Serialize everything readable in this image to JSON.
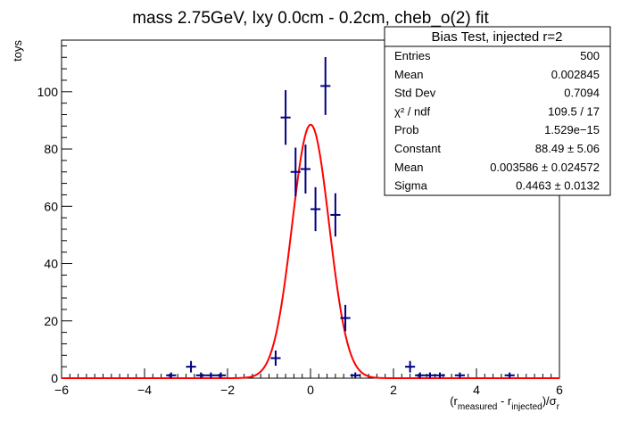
{
  "chart_data": {
    "type": "scatter",
    "title": "mass 2.75GeV, lxy 0.0cm - 0.2cm, cheb_o(2) fit",
    "ylabel": "toys",
    "xlabel_parts": {
      "open": "(r",
      "sub1": "measured",
      "mid": " - r",
      "sub2": "injected",
      "close": ")/σ",
      "sub3": "r"
    },
    "xlim": [
      -6,
      6
    ],
    "ylim": [
      0,
      118
    ],
    "xticks": [
      -6,
      -4,
      -2,
      0,
      2,
      4,
      6
    ],
    "yticks": [
      0,
      20,
      40,
      60,
      80,
      100
    ],
    "bin_width": 0.24,
    "series": [
      {
        "type": "histogram-points",
        "color": "#000080",
        "points": [
          {
            "x": -3.36,
            "y": 1,
            "err": 1.0
          },
          {
            "x": -2.88,
            "y": 4,
            "err": 2.0
          },
          {
            "x": -2.64,
            "y": 1,
            "err": 1.0
          },
          {
            "x": -2.4,
            "y": 1,
            "err": 1.0
          },
          {
            "x": -2.16,
            "y": 1,
            "err": 1.0
          },
          {
            "x": -0.84,
            "y": 7,
            "err": 2.65
          },
          {
            "x": -0.6,
            "y": 91,
            "err": 9.54
          },
          {
            "x": -0.36,
            "y": 72,
            "err": 8.49
          },
          {
            "x": -0.12,
            "y": 73,
            "err": 8.54
          },
          {
            "x": 0.12,
            "y": 59,
            "err": 7.68
          },
          {
            "x": 0.36,
            "y": 102,
            "err": 10.1
          },
          {
            "x": 0.6,
            "y": 57,
            "err": 7.55
          },
          {
            "x": 0.84,
            "y": 21,
            "err": 4.58
          },
          {
            "x": 1.08,
            "y": 1,
            "err": 1.0
          },
          {
            "x": 2.4,
            "y": 4,
            "err": 2.0
          },
          {
            "x": 2.64,
            "y": 1,
            "err": 1.0
          },
          {
            "x": 2.88,
            "y": 1,
            "err": 1.0
          },
          {
            "x": 3.12,
            "y": 1,
            "err": 1.0
          },
          {
            "x": 3.6,
            "y": 1,
            "err": 1.0
          },
          {
            "x": 4.8,
            "y": 1,
            "err": 1.0
          }
        ]
      },
      {
        "type": "gaussian-fit",
        "color": "#ff0000",
        "constant": 88.49,
        "mean": 0.003586,
        "sigma": 0.4463,
        "range": [
          -6,
          6
        ]
      }
    ],
    "stats_box": {
      "title": "Bias Test, injected r=2",
      "rows": [
        {
          "label": "Entries",
          "value": "500"
        },
        {
          "label": "Mean",
          "value": "0.002845"
        },
        {
          "label": "Std Dev",
          "value": "0.7094"
        },
        {
          "label": "χ² / ndf",
          "value": "109.5 / 17"
        },
        {
          "label": "Prob",
          "value": "1.529e−15"
        },
        {
          "label": "Constant",
          "value": "88.49 ± 5.06"
        },
        {
          "label": "Mean",
          "value": "0.003586 ± 0.024572"
        },
        {
          "label": "Sigma",
          "value": "0.4463 ± 0.0132"
        }
      ]
    }
  }
}
